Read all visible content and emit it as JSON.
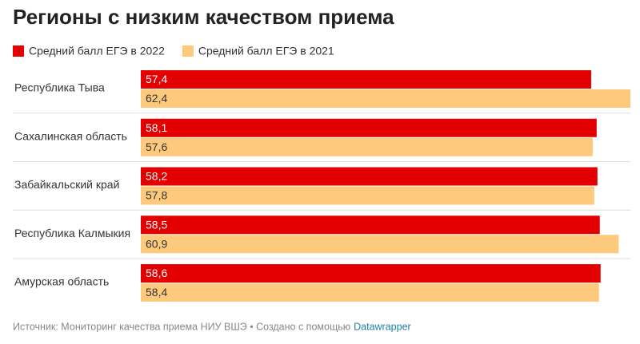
{
  "chart_data": {
    "type": "bar",
    "orientation": "horizontal",
    "title": "Регионы с низким качеством приема",
    "categories": [
      "Республика Тыва",
      "Сахалинская область",
      "Забайкальский край",
      "Республика Калмыкия",
      "Амурская область"
    ],
    "series": [
      {
        "name": "Средний балл ЕГЭ в 2022",
        "color": "#e20000",
        "values": [
          57.4,
          58.1,
          58.2,
          58.5,
          58.6
        ],
        "value_labels": [
          "57,4",
          "58,1",
          "58,2",
          "58,5",
          "58,6"
        ]
      },
      {
        "name": "Средний балл ЕГЭ в 2021",
        "color": "#fdca7d",
        "values": [
          62.4,
          57.6,
          57.8,
          60.9,
          58.4
        ],
        "value_labels": [
          "62,4",
          "57,6",
          "57,8",
          "60,9",
          "58,4"
        ]
      }
    ],
    "footer": "Источник: Мониторинг качества приема НИУ ВШЭ • Создано с помощью",
    "footer_link": "Datawrapper"
  }
}
